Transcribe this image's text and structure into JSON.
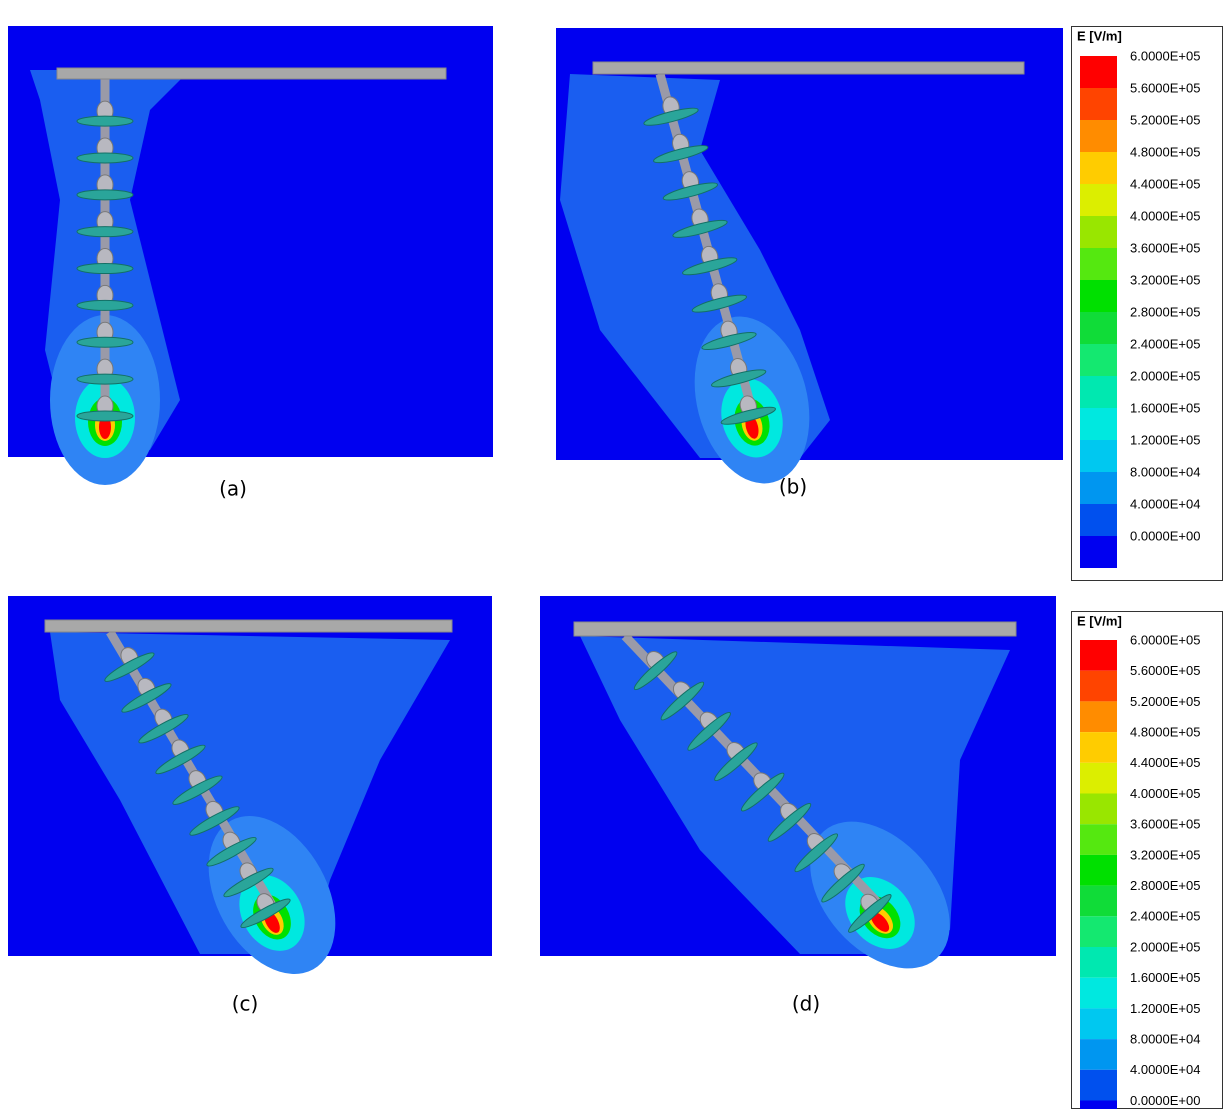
{
  "panels": [
    {
      "label": "(a)"
    },
    {
      "label": "(b)"
    },
    {
      "label": "(c)"
    },
    {
      "label": "(d)"
    }
  ],
  "legends": [
    {
      "title": "E [V/m]",
      "labels": [
        "6.0000E+05",
        "5.6000E+05",
        "5.2000E+05",
        "4.8000E+05",
        "4.4000E+05",
        "4.0000E+05",
        "3.6000E+05",
        "3.2000E+05",
        "2.8000E+05",
        "2.4000E+05",
        "2.0000E+05",
        "1.6000E+05",
        "1.2000E+05",
        "8.0000E+04",
        "4.0000E+04",
        "0.0000E+00"
      ]
    },
    {
      "title": "E [V/m]",
      "labels": [
        "6.0000E+05",
        "5.6000E+05",
        "5.2000E+05",
        "4.8000E+05",
        "4.4000E+05",
        "4.0000E+05",
        "3.6000E+05",
        "3.2000E+05",
        "2.8000E+05",
        "2.4000E+05",
        "2.0000E+05",
        "1.6000E+05",
        "1.2000E+05",
        "8.0000E+04",
        "4.0000E+04",
        "0.0000E+00"
      ]
    }
  ],
  "colors": [
    "#ff0000",
    "#ff4400",
    "#ff8c00",
    "#ffcc00",
    "#dcee00",
    "#99e600",
    "#55e810",
    "#00e000",
    "#10dc38",
    "#14e870",
    "#00e8b0",
    "#00e8e0",
    "#00c8f0",
    "#0096f0",
    "#0050ee",
    "#0000f0"
  ]
}
